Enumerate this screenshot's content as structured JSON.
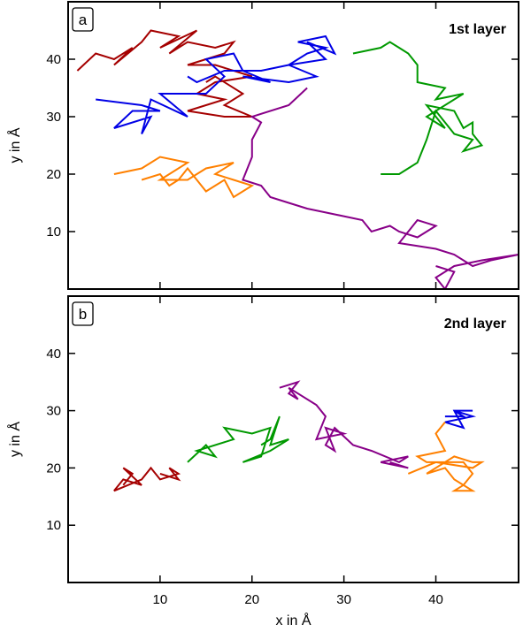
{
  "chart_data": [
    {
      "type": "line",
      "panel_label": "a",
      "title": "1st layer",
      "xlabel": "",
      "ylabel": "y in Å",
      "xlim": [
        0,
        49
      ],
      "ylim": [
        0,
        50
      ],
      "xticks": [
        10,
        20,
        30,
        40
      ],
      "yticks": [
        10,
        20,
        30,
        40
      ],
      "ytick_labels": [
        "10",
        "20",
        "30",
        "40"
      ],
      "grid": false,
      "series": [
        {
          "color": "#a50000",
          "points": [
            [
              1,
              38
            ],
            [
              3,
              41
            ],
            [
              5,
              40
            ],
            [
              7,
              42
            ],
            [
              5,
              39
            ],
            [
              8,
              43
            ],
            [
              9,
              45
            ],
            [
              12,
              44
            ],
            [
              10,
              42
            ],
            [
              14,
              45
            ],
            [
              11,
              41
            ],
            [
              13,
              43
            ],
            [
              16,
              42
            ],
            [
              18,
              43
            ],
            [
              17,
              41
            ],
            [
              13,
              39
            ],
            [
              16,
              39
            ],
            [
              20,
              37
            ],
            [
              16,
              36
            ],
            [
              14,
              34
            ],
            [
              17,
              33
            ],
            [
              13,
              31
            ],
            [
              17,
              30
            ],
            [
              20,
              30
            ],
            [
              17,
              32
            ],
            [
              19,
              34
            ],
            [
              16,
              37
            ],
            [
              15,
              36
            ]
          ]
        },
        {
          "color": "#0000e6",
          "points": [
            [
              3,
              33
            ],
            [
              8,
              32
            ],
            [
              10,
              31
            ],
            [
              7,
              31
            ],
            [
              5,
              28
            ],
            [
              9,
              30
            ],
            [
              8,
              27
            ],
            [
              9,
              33
            ],
            [
              13,
              30
            ],
            [
              10,
              34
            ],
            [
              15,
              34
            ],
            [
              17,
              37
            ],
            [
              15,
              40
            ],
            [
              18,
              41
            ],
            [
              19,
              38
            ],
            [
              22,
              36
            ],
            [
              19,
              37
            ],
            [
              24,
              36
            ],
            [
              27,
              37
            ],
            [
              24,
              39
            ],
            [
              26,
              41
            ],
            [
              28,
              42
            ],
            [
              25,
              43
            ],
            [
              28,
              44
            ],
            [
              29,
              41
            ],
            [
              26,
              43
            ],
            [
              28,
              40
            ],
            [
              24,
              39
            ],
            [
              21,
              38
            ],
            [
              17,
              38
            ],
            [
              14,
              36
            ],
            [
              13,
              37
            ]
          ]
        },
        {
          "color": "#009900",
          "points": [
            [
              31,
              41
            ],
            [
              34,
              42
            ],
            [
              35,
              43
            ],
            [
              36,
              42
            ],
            [
              37,
              41
            ],
            [
              38,
              39
            ],
            [
              38,
              36
            ],
            [
              41,
              35
            ],
            [
              40,
              33
            ],
            [
              43,
              34
            ],
            [
              39,
              30
            ],
            [
              41,
              28
            ],
            [
              39,
              32
            ],
            [
              42,
              31
            ],
            [
              43,
              28
            ],
            [
              44,
              29
            ],
            [
              44,
              27
            ],
            [
              45,
              25
            ],
            [
              43,
              24
            ],
            [
              44,
              26
            ],
            [
              42,
              27
            ],
            [
              40,
              31
            ],
            [
              39,
              26
            ],
            [
              38,
              22
            ],
            [
              37,
              21
            ],
            [
              36,
              20
            ],
            [
              34,
              20
            ]
          ]
        },
        {
          "color": "#ff8000",
          "points": [
            [
              5,
              20
            ],
            [
              8,
              21
            ],
            [
              10,
              23
            ],
            [
              13,
              22
            ],
            [
              11,
              20
            ],
            [
              10,
              19
            ],
            [
              13,
              19
            ],
            [
              15,
              21
            ],
            [
              18,
              22
            ],
            [
              16,
              20
            ],
            [
              18,
              19
            ],
            [
              20,
              18
            ],
            [
              18,
              16
            ],
            [
              17,
              19
            ],
            [
              15,
              17
            ],
            [
              14,
              19
            ],
            [
              13,
              21
            ],
            [
              12,
              19
            ],
            [
              11,
              18
            ],
            [
              10,
              20
            ],
            [
              8,
              19
            ]
          ]
        },
        {
          "color": "#880088",
          "points": [
            [
              26,
              35
            ],
            [
              24,
              32
            ],
            [
              20,
              30
            ],
            [
              21,
              29
            ],
            [
              20,
              26
            ],
            [
              20,
              23
            ],
            [
              19,
              19
            ],
            [
              21,
              18
            ],
            [
              22,
              16
            ],
            [
              24,
              15
            ],
            [
              26,
              14
            ],
            [
              29,
              13
            ],
            [
              32,
              12
            ],
            [
              33,
              10
            ],
            [
              35,
              11
            ],
            [
              36,
              10
            ],
            [
              38,
              9
            ],
            [
              40,
              11
            ],
            [
              38,
              12
            ],
            [
              36,
              8
            ],
            [
              40,
              7
            ],
            [
              42,
              6
            ],
            [
              44,
              4
            ],
            [
              46,
              5
            ],
            [
              49,
              6
            ],
            [
              45,
              5
            ],
            [
              42,
              4
            ],
            [
              40,
              2
            ],
            [
              41,
              0
            ],
            [
              42,
              3
            ],
            [
              40,
              4
            ]
          ]
        }
      ]
    },
    {
      "type": "line",
      "panel_label": "b",
      "title": "2nd layer",
      "xlabel": "x in Å",
      "ylabel": "y in Å",
      "xlim": [
        0,
        49
      ],
      "ylim": [
        0,
        50
      ],
      "xticks": [
        10,
        20,
        30,
        40
      ],
      "xtick_labels": [
        "10",
        "20",
        "30",
        "40"
      ],
      "yticks": [
        10,
        20,
        30,
        40
      ],
      "ytick_labels": [
        "10",
        "20",
        "30",
        "40"
      ],
      "grid": false,
      "series": [
        {
          "color": "#a50000",
          "points": [
            [
              6,
              17
            ],
            [
              7,
              19
            ],
            [
              6,
              20
            ],
            [
              8,
              17
            ],
            [
              6,
              18
            ],
            [
              5,
              16
            ],
            [
              8,
              18
            ],
            [
              9,
              20
            ],
            [
              10,
              18
            ],
            [
              12,
              19
            ],
            [
              11,
              20
            ],
            [
              12,
              18
            ],
            [
              10,
              19
            ]
          ]
        },
        {
          "color": "#009900",
          "points": [
            [
              13,
              21
            ],
            [
              15,
              24
            ],
            [
              16,
              22
            ],
            [
              14,
              23
            ],
            [
              18,
              25
            ],
            [
              17,
              27
            ],
            [
              20,
              26
            ],
            [
              22,
              27
            ],
            [
              21,
              22
            ],
            [
              19,
              21
            ],
            [
              22,
              23
            ],
            [
              24,
              25
            ],
            [
              22,
              24
            ],
            [
              23,
              29
            ],
            [
              22,
              25
            ],
            [
              21,
              24
            ]
          ]
        },
        {
          "color": "#880088",
          "points": [
            [
              23,
              34
            ],
            [
              25,
              35
            ],
            [
              24,
              33
            ],
            [
              25,
              32
            ],
            [
              24,
              34
            ],
            [
              27,
              31
            ],
            [
              28,
              29
            ],
            [
              27,
              25
            ],
            [
              30,
              26
            ],
            [
              28,
              27
            ],
            [
              29,
              23
            ],
            [
              28,
              24
            ],
            [
              29,
              27
            ],
            [
              31,
              24
            ],
            [
              33,
              23
            ],
            [
              36,
              21
            ],
            [
              37,
              22
            ],
            [
              34,
              21
            ],
            [
              37,
              20
            ],
            [
              35,
              21
            ]
          ]
        },
        {
          "color": "#0000e6",
          "points": [
            [
              41,
              29
            ],
            [
              43,
              29
            ],
            [
              42,
              30
            ],
            [
              44,
              29
            ],
            [
              41,
              28
            ],
            [
              43,
              27
            ],
            [
              42,
              30
            ],
            [
              44,
              30
            ]
          ]
        },
        {
          "color": "#ff8000",
          "points": [
            [
              41,
              28
            ],
            [
              40,
              26
            ],
            [
              41,
              23
            ],
            [
              38,
              22
            ],
            [
              39,
              21
            ],
            [
              43,
              21
            ],
            [
              44,
              19
            ],
            [
              43,
              17
            ],
            [
              42,
              16
            ],
            [
              44,
              16
            ],
            [
              42,
              18
            ],
            [
              41,
              20
            ],
            [
              39,
              19
            ],
            [
              42,
              22
            ],
            [
              44,
              21
            ],
            [
              45,
              21
            ],
            [
              44,
              20
            ],
            [
              40,
              21
            ],
            [
              37,
              19
            ]
          ]
        }
      ]
    }
  ]
}
